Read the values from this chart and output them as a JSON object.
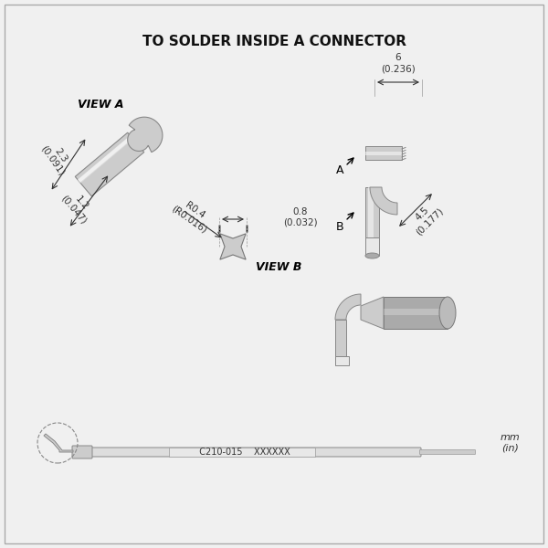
{
  "title": "TO SOLDER INSIDE A CONNECTOR",
  "bg_color": "#f0f0f0",
  "line_color": "#555555",
  "dim_color": "#333333",
  "label_color": "#111111",
  "tip_fill": "#cccccc",
  "tip_highlight": "#e8e8e8",
  "tip_dark": "#aaaaaa",
  "dims": {
    "width_23": "2.3\n(0.091)",
    "width_12": "1.2\n(0.047)",
    "radius_04": "R0.4\n(R0.016)",
    "length_08": "0.8\n(0.032)",
    "length_6": "6\n(0.236)",
    "length_45": "4.5\n(0.177)"
  },
  "view_a_label": "VIEW A",
  "view_b_label": "VIEW B",
  "part_number": "C210-015",
  "lot_number": "XXXXXX",
  "units": "mm\n(in)"
}
